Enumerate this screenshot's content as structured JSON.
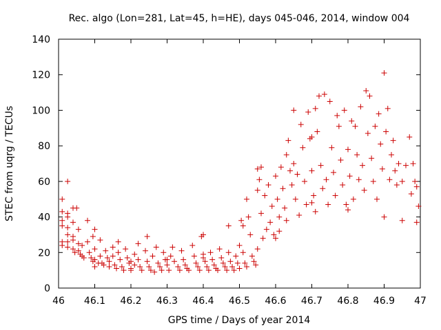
{
  "chart_data": {
    "type": "scatter",
    "title": "Rec. algo (Lon=281, Lat=45, h=HE), days 045-046, 2014, window 004",
    "xlabel": "GPS time / Days of year 2014",
    "ylabel": "STEC from uqrg / TECUs",
    "xlim": [
      46,
      47
    ],
    "ylim": [
      0,
      140
    ],
    "xticks": [
      "46",
      "46.1",
      "46.2",
      "46.3",
      "46.4",
      "46.5",
      "46.6",
      "46.7",
      "46.8",
      "46.9",
      "47"
    ],
    "yticks": [
      "0",
      "20",
      "40",
      "60",
      "80",
      "100",
      "120",
      "140"
    ],
    "marker": "+",
    "point_color": "#cc0000",
    "grid": false,
    "legend": "none",
    "points": [
      [
        46.01,
        50
      ],
      [
        46.01,
        43
      ],
      [
        46.01,
        38
      ],
      [
        46.01,
        35
      ],
      [
        46.01,
        26
      ],
      [
        46.01,
        24
      ],
      [
        46.025,
        60
      ],
      [
        46.025,
        42
      ],
      [
        46.025,
        40
      ],
      [
        46.025,
        34
      ],
      [
        46.025,
        30
      ],
      [
        46.025,
        26
      ],
      [
        46.025,
        23
      ],
      [
        46.04,
        45
      ],
      [
        46.04,
        37
      ],
      [
        46.04,
        29
      ],
      [
        46.04,
        27
      ],
      [
        46.04,
        22
      ],
      [
        46.045,
        20
      ],
      [
        46.05,
        45
      ],
      [
        46.055,
        33
      ],
      [
        46.055,
        25
      ],
      [
        46.055,
        21
      ],
      [
        46.06,
        19
      ],
      [
        46.065,
        24
      ],
      [
        46.065,
        18
      ],
      [
        46.07,
        17
      ],
      [
        46.08,
        38
      ],
      [
        46.08,
        26
      ],
      [
        46.085,
        20
      ],
      [
        46.09,
        17
      ],
      [
        46.095,
        15
      ],
      [
        46.095,
        29
      ],
      [
        46.1,
        33
      ],
      [
        46.1,
        22
      ],
      [
        46.1,
        16
      ],
      [
        46.11,
        14
      ],
      [
        46.115,
        27
      ],
      [
        46.115,
        18
      ],
      [
        46.12,
        14
      ],
      [
        46.125,
        13
      ],
      [
        46.13,
        21
      ],
      [
        46.135,
        17
      ],
      [
        46.14,
        15
      ],
      [
        46.14,
        12
      ],
      [
        46.15,
        23
      ],
      [
        46.15,
        18
      ],
      [
        46.155,
        13
      ],
      [
        46.16,
        11
      ],
      [
        46.165,
        26
      ],
      [
        46.165,
        20
      ],
      [
        46.17,
        16
      ],
      [
        46.175,
        12
      ],
      [
        46.18,
        10
      ],
      [
        46.185,
        22
      ],
      [
        46.19,
        17
      ],
      [
        46.195,
        14
      ],
      [
        46.2,
        11
      ],
      [
        46.2,
        10
      ],
      [
        46.21,
        19
      ],
      [
        46.21,
        13
      ],
      [
        46.22,
        25
      ],
      [
        46.22,
        16
      ],
      [
        46.225,
        12
      ],
      [
        46.23,
        10
      ],
      [
        46.24,
        21
      ],
      [
        46.245,
        29
      ],
      [
        46.245,
        15
      ],
      [
        46.25,
        12
      ],
      [
        46.255,
        10
      ],
      [
        46.26,
        18
      ],
      [
        46.265,
        9
      ],
      [
        46.27,
        23
      ],
      [
        46.275,
        14
      ],
      [
        46.28,
        12
      ],
      [
        46.285,
        10
      ],
      [
        46.29,
        20
      ],
      [
        46.295,
        16
      ],
      [
        46.3,
        13
      ],
      [
        46.305,
        10
      ],
      [
        46.31,
        18
      ],
      [
        46.315,
        23
      ],
      [
        46.32,
        15
      ],
      [
        46.33,
        12
      ],
      [
        46.335,
        10
      ],
      [
        46.34,
        21
      ],
      [
        46.345,
        16
      ],
      [
        46.35,
        13
      ],
      [
        46.355,
        11
      ],
      [
        46.36,
        10
      ],
      [
        46.37,
        24
      ],
      [
        46.375,
        18
      ],
      [
        46.38,
        14
      ],
      [
        46.385,
        12
      ],
      [
        46.39,
        10
      ],
      [
        46.395,
        29
      ],
      [
        46.4,
        30
      ],
      [
        46.4,
        19
      ],
      [
        46.405,
        15
      ],
      [
        46.41,
        12
      ],
      [
        46.415,
        10
      ],
      [
        46.42,
        20
      ],
      [
        46.425,
        16
      ],
      [
        46.43,
        13
      ],
      [
        46.435,
        11
      ],
      [
        46.44,
        10
      ],
      [
        46.445,
        22
      ],
      [
        46.45,
        17
      ],
      [
        46.455,
        14
      ],
      [
        46.46,
        12
      ],
      [
        46.465,
        10
      ],
      [
        46.47,
        35
      ],
      [
        46.47,
        20
      ],
      [
        46.475,
        15
      ],
      [
        46.48,
        12
      ],
      [
        46.485,
        10
      ],
      [
        46.49,
        18
      ],
      [
        46.495,
        14
      ],
      [
        46.5,
        11
      ],
      [
        46.5,
        24
      ],
      [
        46.505,
        38
      ],
      [
        46.51,
        35
      ],
      [
        46.51,
        20
      ],
      [
        46.515,
        14
      ],
      [
        46.52,
        12
      ],
      [
        46.52,
        50
      ],
      [
        46.525,
        40
      ],
      [
        46.53,
        30
      ],
      [
        46.535,
        18
      ],
      [
        46.54,
        15
      ],
      [
        46.545,
        13
      ],
      [
        46.55,
        67
      ],
      [
        46.55,
        55
      ],
      [
        46.55,
        22
      ],
      [
        46.555,
        61
      ],
      [
        46.56,
        68
      ],
      [
        46.56,
        42
      ],
      [
        46.565,
        28
      ],
      [
        46.57,
        52
      ],
      [
        46.575,
        33
      ],
      [
        46.58,
        58
      ],
      [
        46.585,
        37
      ],
      [
        46.59,
        46
      ],
      [
        46.595,
        30
      ],
      [
        46.6,
        63
      ],
      [
        46.605,
        50
      ],
      [
        46.61,
        40
      ],
      [
        46.61,
        32
      ],
      [
        46.615,
        68
      ],
      [
        46.62,
        56
      ],
      [
        46.625,
        45
      ],
      [
        46.63,
        75
      ],
      [
        46.63,
        38
      ],
      [
        46.635,
        83
      ],
      [
        46.64,
        66
      ],
      [
        46.645,
        58
      ],
      [
        46.65,
        100
      ],
      [
        46.65,
        70
      ],
      [
        46.655,
        50
      ],
      [
        46.66,
        64
      ],
      [
        46.665,
        41
      ],
      [
        46.67,
        92
      ],
      [
        46.675,
        79
      ],
      [
        46.68,
        60
      ],
      [
        46.685,
        47
      ],
      [
        46.69,
        99
      ],
      [
        46.695,
        84
      ],
      [
        46.7,
        85
      ],
      [
        46.7,
        66
      ],
      [
        46.705,
        52
      ],
      [
        46.71,
        101
      ],
      [
        46.71,
        43
      ],
      [
        46.715,
        88
      ],
      [
        46.72,
        108
      ],
      [
        46.725,
        69
      ],
      [
        46.73,
        56
      ],
      [
        46.735,
        109
      ],
      [
        46.74,
        61
      ],
      [
        46.745,
        47
      ],
      [
        46.75,
        105
      ],
      [
        46.755,
        79
      ],
      [
        46.76,
        65
      ],
      [
        46.765,
        52
      ],
      [
        46.77,
        97
      ],
      [
        46.775,
        91
      ],
      [
        46.78,
        72
      ],
      [
        46.785,
        58
      ],
      [
        46.79,
        100
      ],
      [
        46.795,
        47
      ],
      [
        46.8,
        78
      ],
      [
        46.805,
        63
      ],
      [
        46.81,
        94
      ],
      [
        46.815,
        50
      ],
      [
        46.82,
        91
      ],
      [
        46.825,
        75
      ],
      [
        46.83,
        61
      ],
      [
        46.835,
        102
      ],
      [
        46.84,
        69
      ],
      [
        46.845,
        55
      ],
      [
        46.85,
        111
      ],
      [
        46.855,
        87
      ],
      [
        46.86,
        108
      ],
      [
        46.865,
        73
      ],
      [
        46.87,
        60
      ],
      [
        46.875,
        91
      ],
      [
        46.88,
        50
      ],
      [
        46.885,
        98
      ],
      [
        46.89,
        81
      ],
      [
        46.895,
        67
      ],
      [
        46.9,
        121
      ],
      [
        46.905,
        88
      ],
      [
        46.91,
        101
      ],
      [
        46.915,
        61
      ],
      [
        46.92,
        75
      ],
      [
        46.925,
        83
      ],
      [
        46.93,
        66
      ],
      [
        46.935,
        58
      ],
      [
        46.94,
        70
      ],
      [
        46.95,
        60
      ],
      [
        46.96,
        69
      ],
      [
        46.97,
        85
      ],
      [
        46.975,
        53
      ],
      [
        46.98,
        70
      ],
      [
        46.985,
        60
      ],
      [
        46.99,
        57
      ],
      [
        46.995,
        46
      ],
      [
        46.4,
        17
      ],
      [
        46.3,
        16
      ],
      [
        46.2,
        15
      ],
      [
        46.1,
        12
      ],
      [
        46.6,
        28
      ],
      [
        46.7,
        48
      ],
      [
        46.8,
        44
      ],
      [
        46.9,
        40
      ],
      [
        46.95,
        38
      ],
      [
        46.99,
        37
      ]
    ]
  }
}
